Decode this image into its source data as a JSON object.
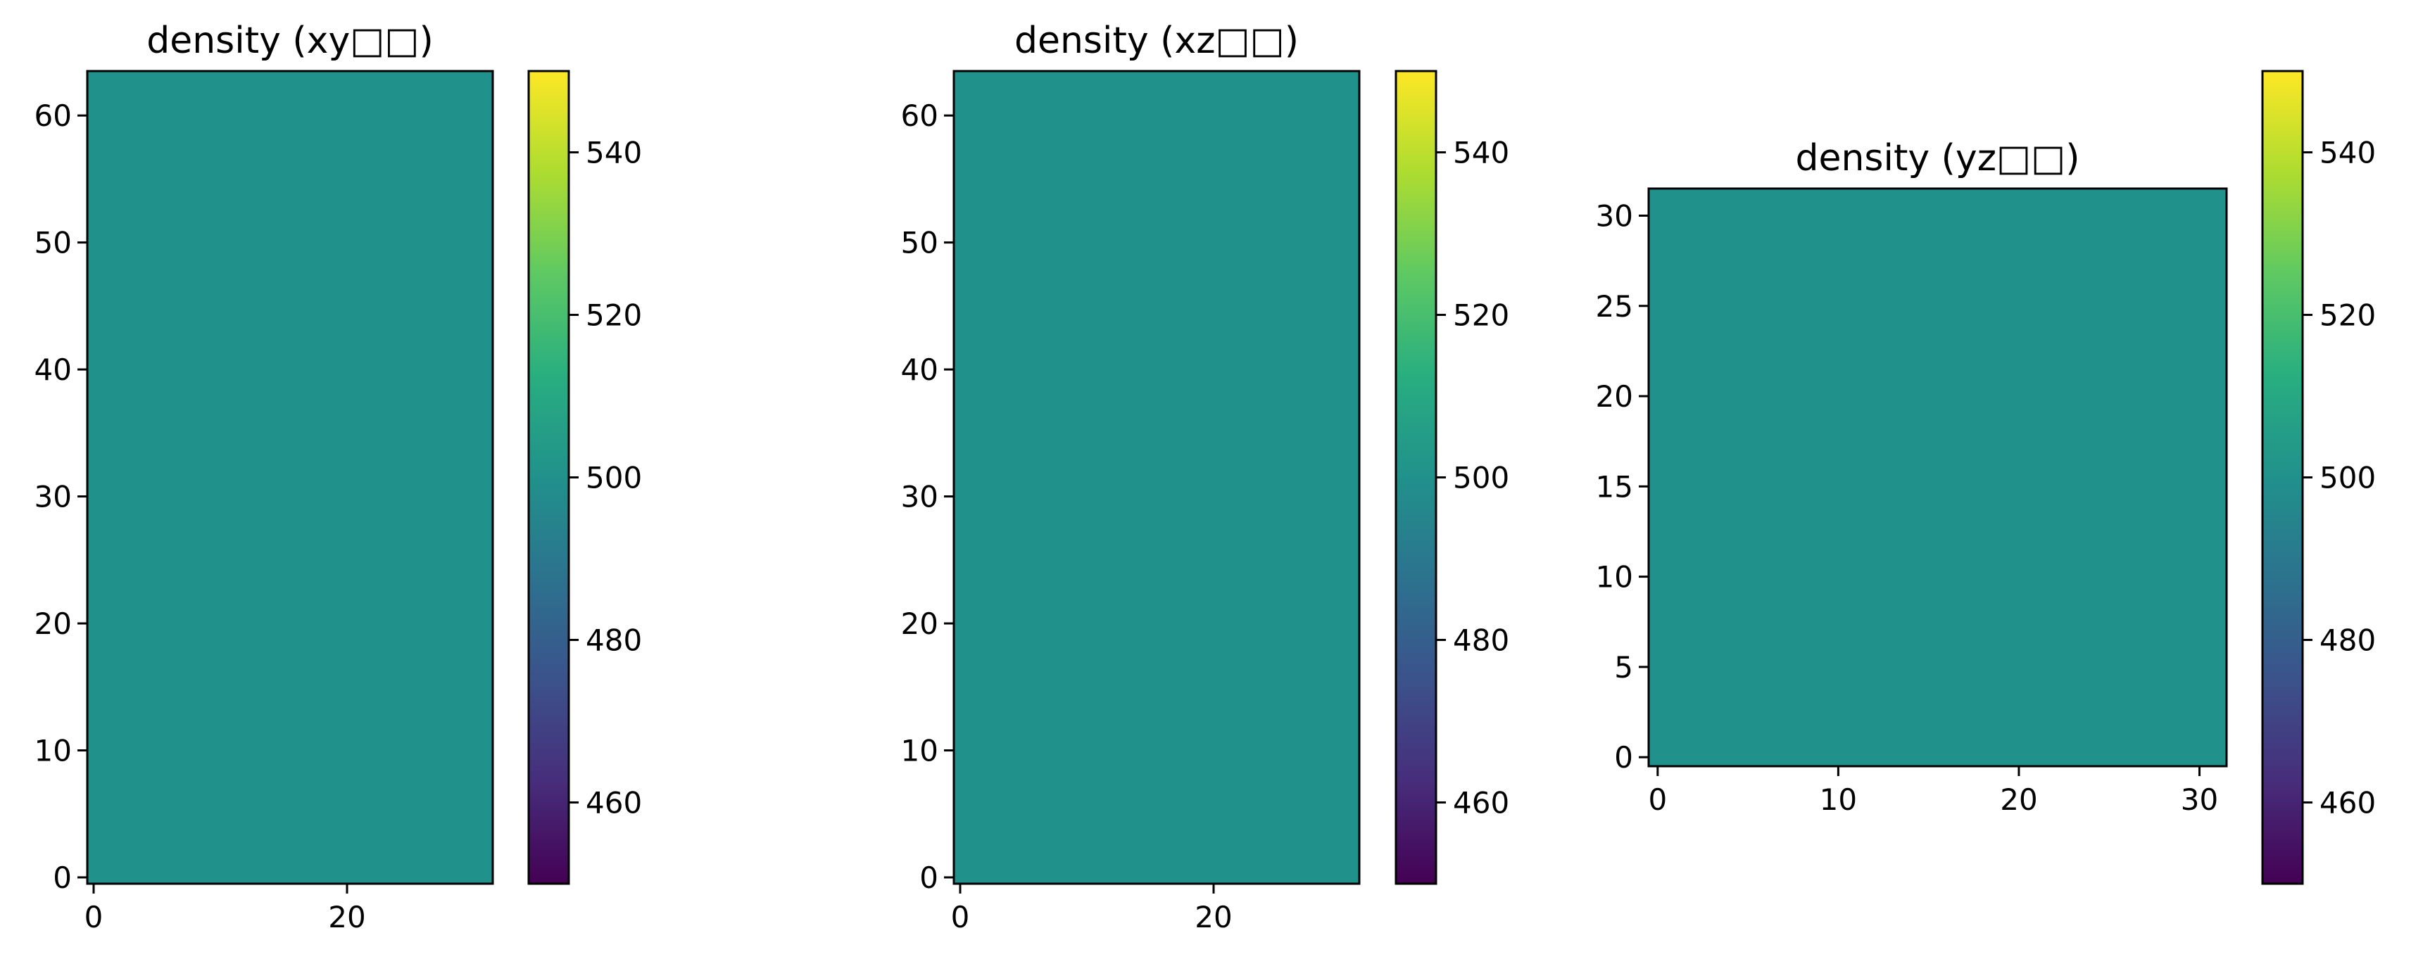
{
  "chart_data": [
    {
      "type": "heatmap",
      "title": "density (xy□□)",
      "xlabel": "",
      "ylabel": "",
      "xlim": [
        -0.5,
        31.5
      ],
      "ylim": [
        -0.5,
        63.5
      ],
      "x_ticks": [
        0,
        20
      ],
      "y_ticks": [
        0,
        10,
        20,
        30,
        40,
        50,
        60
      ],
      "grid_shape": [
        64,
        32
      ],
      "value": 500,
      "color": "#21918c",
      "colorbar": {
        "cmap": "viridis",
        "range": [
          450,
          550
        ],
        "ticks": [
          460,
          480,
          500,
          520,
          540
        ]
      },
      "grid": false
    },
    {
      "type": "heatmap",
      "title": "density (xz□□)",
      "xlabel": "",
      "ylabel": "",
      "xlim": [
        -0.5,
        31.5
      ],
      "ylim": [
        -0.5,
        63.5
      ],
      "x_ticks": [
        0,
        20
      ],
      "y_ticks": [
        0,
        10,
        20,
        30,
        40,
        50,
        60
      ],
      "grid_shape": [
        64,
        32
      ],
      "value": 500,
      "color": "#21918c",
      "colorbar": {
        "cmap": "viridis",
        "range": [
          450,
          550
        ],
        "ticks": [
          460,
          480,
          500,
          520,
          540
        ]
      },
      "grid": false
    },
    {
      "type": "heatmap",
      "title": "density (yz□□)",
      "xlabel": "",
      "ylabel": "",
      "xlim": [
        -0.5,
        31.5
      ],
      "ylim": [
        -0.5,
        31.5
      ],
      "x_ticks": [
        0,
        10,
        20,
        30
      ],
      "y_ticks": [
        0,
        5,
        10,
        15,
        20,
        25,
        30
      ],
      "grid_shape": [
        32,
        32
      ],
      "value": 500,
      "color": "#21918c",
      "colorbar": {
        "cmap": "viridis",
        "range": [
          450,
          550
        ],
        "ticks": [
          460,
          480,
          500,
          520,
          540
        ]
      },
      "grid": false
    }
  ]
}
